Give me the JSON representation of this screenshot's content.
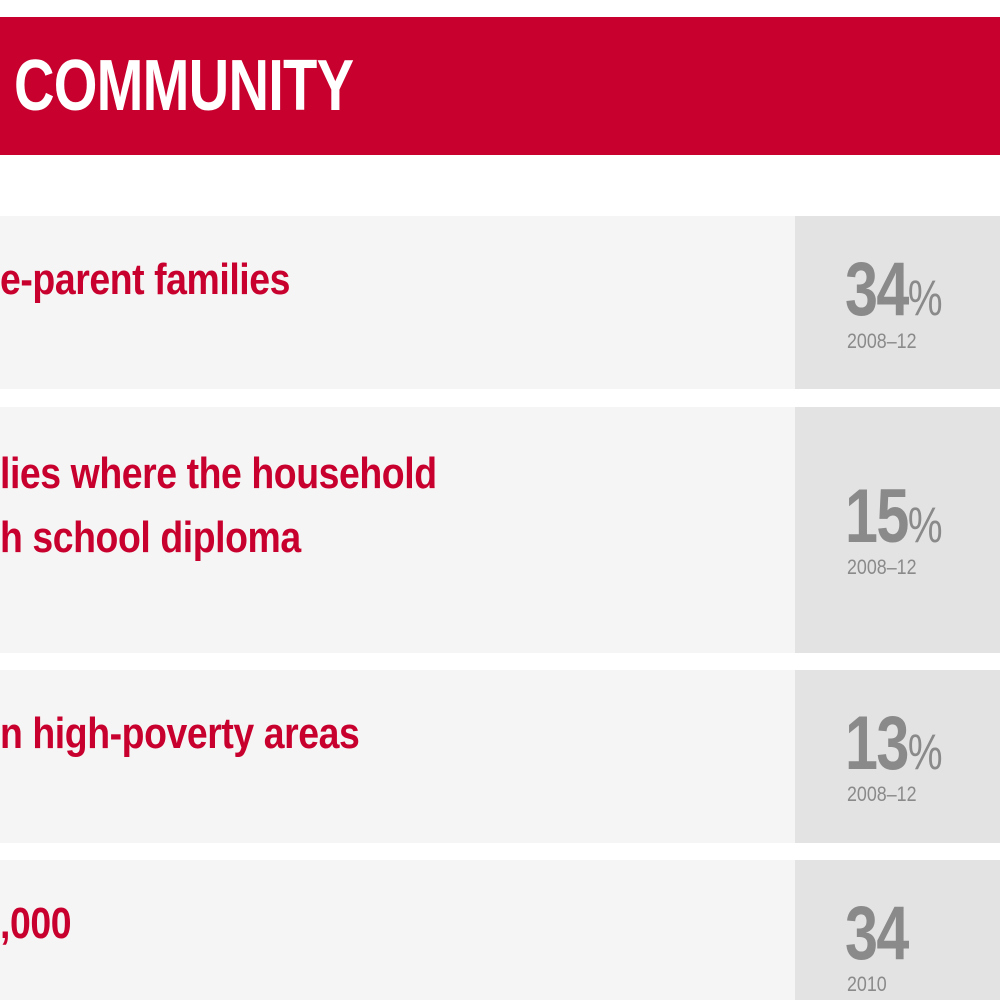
{
  "header": {
    "title": "COMMUNITY"
  },
  "rows": [
    {
      "lines": [
        "e-parent families"
      ],
      "value": "34",
      "unit": "%",
      "year": "2008–12"
    },
    {
      "lines": [
        "lies where the household",
        "h school diploma"
      ],
      "value": "15",
      "unit": "%",
      "year": "2008–12"
    },
    {
      "lines": [
        "n high-poverty areas"
      ],
      "value": "13",
      "unit": "%",
      "year": "2008–12"
    },
    {
      "lines": [
        ",000"
      ],
      "value": "34",
      "unit": "",
      "year": "2010"
    }
  ],
  "colors": {
    "accent": "#c8002e",
    "row_bg": "#f5f5f5",
    "stat_bg": "#e3e3e3",
    "stat_text": "#8a8a8a"
  }
}
